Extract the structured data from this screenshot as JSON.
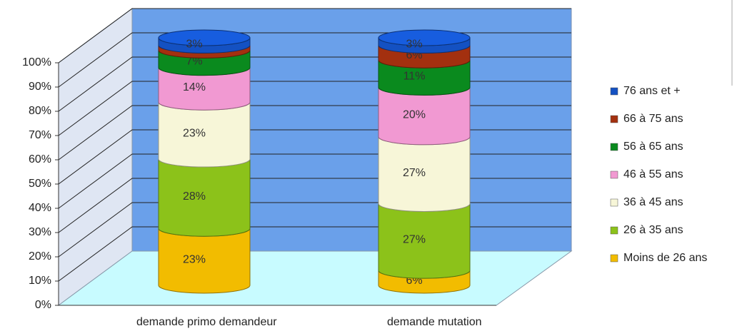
{
  "chart_data": {
    "type": "stacked-cylinder",
    "categories": [
      "demande primo demandeur",
      "demande mutation"
    ],
    "series": [
      {
        "name": "Moins de 26 ans",
        "color": "#f2bc00",
        "values": [
          23,
          6
        ],
        "value_labels": [
          "23%",
          "6%"
        ]
      },
      {
        "name": "26 à 35 ans",
        "color": "#8cc21a",
        "values": [
          28,
          27
        ],
        "value_labels": [
          "28%",
          "27%"
        ]
      },
      {
        "name": "36 à 45 ans",
        "color": "#f7f6d8",
        "values": [
          23,
          27
        ],
        "value_labels": [
          "23%",
          "27%"
        ]
      },
      {
        "name": "46 à 55 ans",
        "color": "#f199d2",
        "values": [
          14,
          20
        ],
        "value_labels": [
          "14%",
          "20%"
        ]
      },
      {
        "name": "56 à 65 ans",
        "color": "#0a8a1e",
        "values": [
          7,
          11
        ],
        "value_labels": [
          "7%",
          "11%"
        ]
      },
      {
        "name": "66 à 75 ans",
        "color": "#a3300f",
        "values": [
          2,
          6
        ],
        "value_labels": [
          null,
          "6%"
        ]
      },
      {
        "name": "76 ans et +",
        "color": "#1451c2",
        "values": [
          3,
          3
        ],
        "value_labels": [
          "3%",
          "3%"
        ]
      }
    ],
    "ylim": [
      0,
      100
    ],
    "yticks": [
      {
        "value": 0,
        "label": "0%"
      },
      {
        "value": 10,
        "label": "10%"
      },
      {
        "value": 20,
        "label": "20%"
      },
      {
        "value": 30,
        "label": "30%"
      },
      {
        "value": 40,
        "label": "40%"
      },
      {
        "value": 50,
        "label": "50%"
      },
      {
        "value": 60,
        "label": "60%"
      },
      {
        "value": 70,
        "label": "70%"
      },
      {
        "value": 80,
        "label": "80%"
      },
      {
        "value": 90,
        "label": "90%"
      },
      {
        "value": 100,
        "label": "100%"
      }
    ],
    "grid": true,
    "legend": "right"
  }
}
